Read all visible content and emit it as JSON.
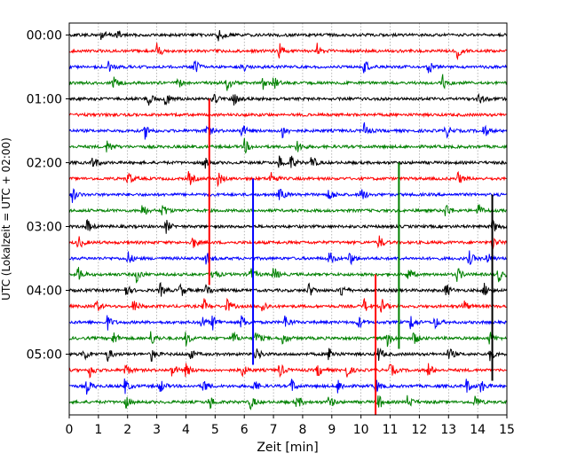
{
  "chart_data": {
    "type": "line",
    "xlabel": "Zeit  [min]",
    "ylabel": "UTC (Lokalzeit = UTC + 02:00)",
    "xlim": [
      0,
      15
    ],
    "x_ticks": [
      "0",
      "1",
      "2",
      "3",
      "4",
      "5",
      "6",
      "7",
      "8",
      "9",
      "10",
      "11",
      "12",
      "13",
      "14",
      "15"
    ],
    "y_ticks": [
      "00:00",
      "01:00",
      "02:00",
      "03:00",
      "04:00",
      "05:00"
    ],
    "grid": "vertical dotted at every minute",
    "trace_interval_min": 15,
    "trace_color_cycle": [
      "#000000",
      "#ff0000",
      "#0000ff",
      "#008000"
    ],
    "trace_count": 24,
    "events": [
      {
        "trace": 0,
        "t": [
          1.1,
          1.6,
          5.1
        ]
      },
      {
        "trace": 1,
        "t": [
          3.0,
          7.2,
          8.5,
          13.3
        ]
      },
      {
        "trace": 2,
        "t": [
          1.3,
          4.3,
          5.9,
          10.1,
          12.3
        ]
      },
      {
        "trace": 3,
        "t": [
          1.5,
          3.7,
          5.4,
          6.6,
          7.0,
          12.8
        ]
      },
      {
        "trace": 4,
        "t": [
          2.7,
          3.3,
          4.9,
          5.6,
          14.0
        ]
      },
      {
        "trace": 5,
        "t": []
      },
      {
        "trace": 6,
        "t": [
          2.6,
          4.7,
          5.9,
          7.3,
          10.1,
          12.9,
          14.2
        ]
      },
      {
        "trace": 7,
        "t": [
          1.3,
          6.0,
          7.8
        ]
      },
      {
        "trace": 8,
        "t": [
          0.8,
          4.6,
          7.2,
          7.6,
          8.3
        ]
      },
      {
        "trace": 9,
        "t": [
          2.0,
          4.1,
          5.1,
          6.9,
          13.3
        ]
      },
      {
        "trace": 10,
        "t": [
          0.1,
          7.2,
          8.9,
          10.0
        ]
      },
      {
        "trace": 11,
        "t": [
          2.5,
          3.2,
          12.9,
          14.0
        ]
      },
      {
        "trace": 12,
        "t": [
          0.6,
          3.3,
          14.5
        ]
      },
      {
        "trace": 13,
        "t": [
          0.3,
          4.2,
          10.6,
          14.5
        ]
      },
      {
        "trace": 14,
        "t": [
          2.0,
          4.7,
          8.9,
          9.6,
          13.7,
          14.3
        ]
      },
      {
        "trace": 15,
        "t": [
          0.3,
          2.3,
          4.9,
          6.2,
          7.0,
          11.6,
          13.3,
          14.7
        ]
      },
      {
        "trace": 16,
        "t": [
          1.9,
          3.1,
          3.8,
          4.7,
          8.2,
          9.3,
          12.9,
          14.2
        ]
      },
      {
        "trace": 17,
        "t": [
          0.9,
          2.2,
          4.6,
          5.4,
          6.6,
          10.1,
          10.7,
          13.5
        ]
      },
      {
        "trace": 18,
        "t": [
          1.3,
          4.5,
          4.9,
          5.9,
          7.4,
          9.9,
          11.7,
          12.5
        ]
      },
      {
        "trace": 19,
        "t": [
          1.5,
          2.8,
          4.0,
          5.6,
          6.4,
          7.3,
          10.9,
          11.8,
          14.4
        ]
      },
      {
        "trace": 20,
        "t": [
          0.5,
          1.3,
          2.8,
          4.1,
          6.4,
          8.9,
          10.6,
          13.0,
          14.4
        ]
      },
      {
        "trace": 21,
        "t": [
          0.7,
          1.9,
          3.5,
          4.0,
          5.9,
          7.2,
          8.5,
          9.5,
          11.0,
          12.3
        ]
      },
      {
        "trace": 22,
        "t": [
          0.6,
          1.9,
          3.1,
          4.6,
          6.3,
          7.6,
          9.2,
          10.5,
          13.6,
          14.1
        ]
      },
      {
        "trace": 23,
        "t": [
          1.9,
          4.8,
          6.2,
          7.8,
          8.9,
          10.6,
          11.6,
          13.9
        ]
      }
    ],
    "spikes": [
      {
        "trace": 9,
        "t": 4.8,
        "color": "#ff0000"
      },
      {
        "trace": 14,
        "t": 6.3,
        "color": "#0000ff"
      },
      {
        "trace": 13,
        "t": 11.3,
        "color": "#008000"
      },
      {
        "trace": 15,
        "t": 14.5,
        "color": "#000000"
      },
      {
        "trace": 20,
        "t": 10.5,
        "color": "#ff0000"
      }
    ]
  }
}
